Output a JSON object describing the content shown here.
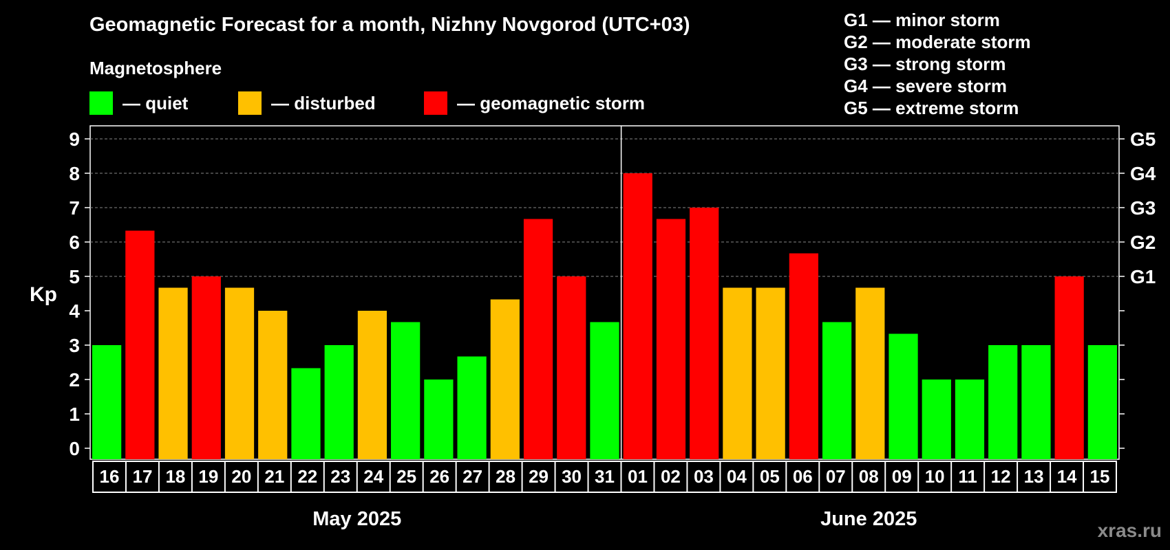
{
  "title": "Geomagnetic Forecast for a month, Nizhny Novgorod (UTC+03)",
  "magnetosphere_label": "Magnetosphere",
  "legend": [
    {
      "label": "— quiet",
      "color": "#00ff00"
    },
    {
      "label": "— disturbed",
      "color": "#ffc000"
    },
    {
      "label": "— geomagnetic storm",
      "color": "#ff0000"
    }
  ],
  "g_scale": [
    "G1 — minor storm",
    "G2 — moderate storm",
    "G3 — strong storm",
    "G4 — severe storm",
    "G5 — extreme storm"
  ],
  "watermark": "xras.ru",
  "chart_data": {
    "type": "bar",
    "ylabel": "Kp",
    "ylim": [
      0,
      9
    ],
    "yticks": [
      "0",
      "1",
      "2",
      "3",
      "4",
      "5",
      "6",
      "7",
      "8",
      "9"
    ],
    "right_axis_labels": [
      {
        "value": 5,
        "label": "G1"
      },
      {
        "value": 6,
        "label": "G2"
      },
      {
        "value": 7,
        "label": "G3"
      },
      {
        "value": 8,
        "label": "G4"
      },
      {
        "value": 9,
        "label": "G5"
      }
    ],
    "grid": "dashed horizontal at 5-9",
    "categories": [
      "16",
      "17",
      "18",
      "19",
      "20",
      "21",
      "22",
      "23",
      "24",
      "25",
      "26",
      "27",
      "28",
      "29",
      "30",
      "31",
      "01",
      "02",
      "03",
      "04",
      "05",
      "06",
      "07",
      "08",
      "09",
      "10",
      "11",
      "12",
      "13",
      "14",
      "15"
    ],
    "values": [
      3.0,
      6.33,
      4.67,
      5.0,
      4.67,
      4.0,
      2.33,
      3.0,
      4.0,
      3.67,
      2.0,
      2.67,
      4.33,
      6.67,
      5.0,
      3.67,
      8.0,
      6.67,
      7.0,
      4.67,
      4.67,
      5.67,
      3.67,
      4.67,
      3.33,
      2.0,
      2.0,
      3.0,
      3.0,
      5.0,
      3.0
    ],
    "status": [
      "quiet",
      "storm",
      "disturbed",
      "storm",
      "disturbed",
      "disturbed",
      "quiet",
      "quiet",
      "disturbed",
      "quiet",
      "quiet",
      "quiet",
      "disturbed",
      "storm",
      "storm",
      "quiet",
      "storm",
      "storm",
      "storm",
      "disturbed",
      "disturbed",
      "storm",
      "quiet",
      "disturbed",
      "quiet",
      "quiet",
      "quiet",
      "quiet",
      "quiet",
      "storm",
      "quiet"
    ],
    "status_colors": {
      "quiet": "#00ff00",
      "disturbed": "#ffc000",
      "storm": "#ff0000"
    },
    "months": [
      {
        "label": "May 2025",
        "first_index": 0,
        "last_index": 15
      },
      {
        "label": "June 2025",
        "first_index": 16,
        "last_index": 30
      }
    ]
  }
}
